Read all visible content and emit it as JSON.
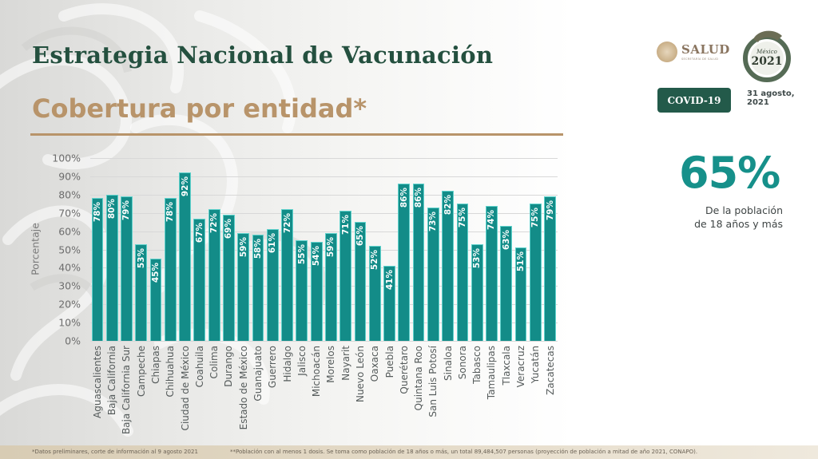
{
  "header": {
    "title": "Estrategia Nacional de Vacunación",
    "subtitle": "Cobertura por entidad*"
  },
  "branding": {
    "salud_word": "SALUD",
    "salud_sub": "SECRETARÍA DE SALUD",
    "badge": "COVID-19",
    "date_line1": "31 agosto,",
    "date_line2": "2021",
    "emblem_text_top": "México",
    "emblem_year": "2021"
  },
  "summary": {
    "value": "65%",
    "caption_line1": "De la población",
    "caption_line2": "de 18 años y más"
  },
  "footnotes": {
    "note1": "*Datos preliminares, corte de información al 9 agosto  2021",
    "note2": "**Población con al menos 1 dosis. Se toma como población de 18 años o más, un total 89,484,507 personas (proyección de población a mitad de año 2021, CONAPO)."
  },
  "colors": {
    "bar": "#138c88",
    "bar_border": "#5fd2cc",
    "title": "#24503f",
    "subtitle": "#b8946a",
    "accent_teal": "#16908a",
    "badge_bg": "#235a4a"
  },
  "chart_data": {
    "type": "bar",
    "title": "Cobertura por entidad*",
    "xlabel": "",
    "ylabel": "Porcentaje",
    "ylim": [
      0,
      100
    ],
    "yticks": [
      "0%",
      "10%",
      "20%",
      "30%",
      "40%",
      "50%",
      "60%",
      "70%",
      "80%",
      "90%",
      "100%"
    ],
    "grid": true,
    "legend": null,
    "categories": [
      "Aguascalientes",
      "Baja California",
      "Baja California Sur",
      "Campeche",
      "Chiapas",
      "Chihuahua",
      "Ciudad de México",
      "Coahuila",
      "Colima",
      "Durango",
      "Estado de México",
      "Guanajuato",
      "Guerrero",
      "Hidalgo",
      "Jalisco",
      "Michoacán",
      "Morelos",
      "Nayarit",
      "Nuevo León",
      "Oaxaca",
      "Puebla",
      "Querétaro",
      "Quintana Roo",
      "San Luis Potosí",
      "Sinaloa",
      "Sonora",
      "Tabasco",
      "Tamaulipas",
      "Tlaxcala",
      "Veracruz",
      "Yucatán",
      "Zacatecas"
    ],
    "values": [
      78,
      80,
      79,
      53,
      45,
      78,
      92,
      67,
      72,
      69,
      59,
      58,
      61,
      72,
      55,
      54,
      59,
      71,
      65,
      52,
      41,
      86,
      86,
      73,
      82,
      75,
      53,
      74,
      63,
      51,
      75,
      79
    ],
    "value_labels": [
      "78%",
      "80%",
      "79%",
      "53%",
      "45%",
      "78%",
      "92%",
      "67%",
      "72%",
      "69%",
      "59%",
      "58%",
      "61%",
      "72%",
      "55%",
      "54%",
      "59%",
      "71%",
      "65%",
      "52%",
      "41%",
      "86%",
      "86%",
      "73%",
      "82%",
      "75%",
      "53%",
      "74%",
      "63%",
      "51%",
      "75%",
      "79%"
    ]
  }
}
